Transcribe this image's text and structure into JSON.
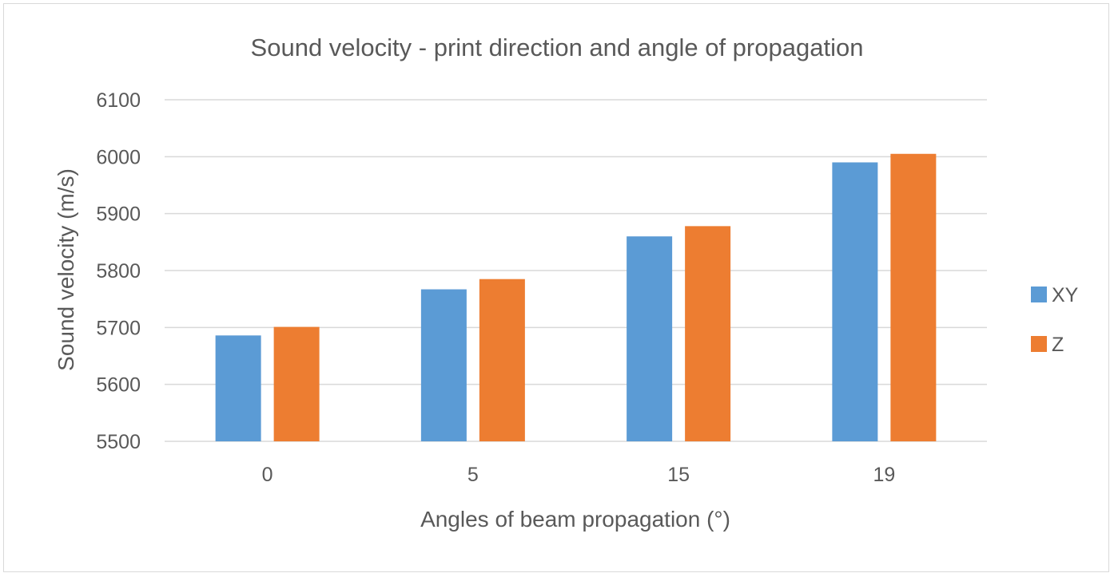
{
  "chart_data": {
    "type": "bar",
    "title": "Sound velocity - print direction and angle of propagation",
    "xlabel": "Angles of beam propagation (°)",
    "ylabel": "Sound velocity (m/s)",
    "categories": [
      "0",
      "5",
      "15",
      "19"
    ],
    "ylim": [
      5500,
      6100
    ],
    "yticks": [
      5500,
      5600,
      5700,
      5800,
      5900,
      6000,
      6100
    ],
    "grid": true,
    "legend_position": "right",
    "series": [
      {
        "name": "XY",
        "color": "#5b9bd5",
        "values": [
          5686,
          5767,
          5860,
          5990
        ]
      },
      {
        "name": "Z",
        "color": "#ed7d31",
        "values": [
          5701,
          5785,
          5878,
          6005
        ]
      }
    ]
  }
}
